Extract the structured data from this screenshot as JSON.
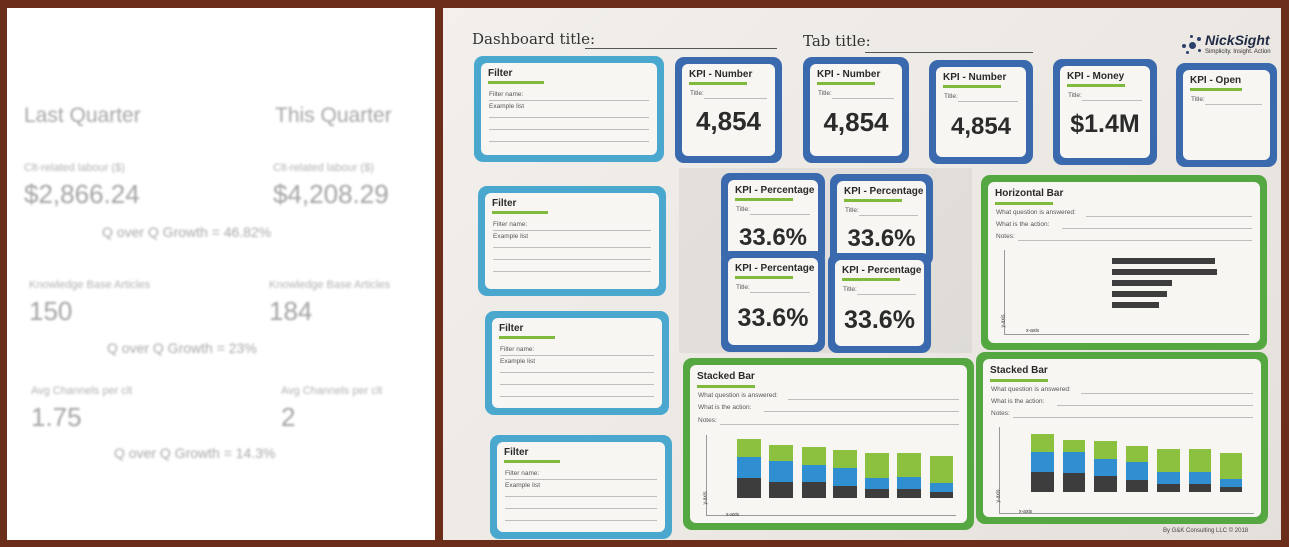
{
  "summary": {
    "last_quarter": "Last Quarter",
    "this_quarter": "This Quarter",
    "metrics": [
      {
        "label_last": "Clt-related labour ($)",
        "value_last": "$2,866.24",
        "label_this": "Clt-related labour ($)",
        "value_this": "$4,208.29",
        "growth": "Q over Q Growth = 46.82%"
      },
      {
        "label_last": "Knowledge Base Articles",
        "value_last": "150",
        "label_this": "Knowledge Base Articles",
        "value_this": "184",
        "growth": "Q over Q Growth = 23%"
      },
      {
        "label_last": "Avg Channels per clt",
        "value_last": "1.75",
        "label_this": "Avg Channels per clt",
        "value_this": "2",
        "growth": "Q over Q Growth = 14.3%"
      }
    ]
  },
  "board": {
    "dashboard_title_label": "Dashboard title:",
    "tab_title_label": "Tab title:",
    "logo": {
      "name": "NickSight",
      "tagline": "Simplicity. Insight. Action"
    },
    "filter": {
      "title": "Filter",
      "filter_name": "Filter name:",
      "example_list": "Example list"
    },
    "kpi_number": {
      "title": "KPI - Number",
      "label": "Title:",
      "value": "4,854"
    },
    "kpi_money": {
      "title": "KPI - Money",
      "label": "Title:",
      "value": "$1.4M"
    },
    "kpi_open": {
      "title": "KPI - Open",
      "label": "Title:"
    },
    "kpi_percentage": {
      "title": "KPI - Percentage",
      "label": "Title:",
      "value": "33.6%"
    },
    "chart_card": {
      "question": "What question is answered:",
      "action": "What is the action:",
      "notes": "Notes:",
      "x_axis": "x-axis",
      "y_axis": "y-axis"
    },
    "horizontal_bar": {
      "title": "Horizontal Bar"
    },
    "stacked_bar": {
      "title": "Stacked Bar"
    },
    "footer": "By G&K Consulting LLC © 2018"
  },
  "colors": {
    "kpi_frame": "#3a6aad",
    "filter_frame": "#4aa8cf",
    "chart_frame": "#55a742",
    "title_underline": "#7fba3c",
    "bar_dark": "#3d3d3d",
    "bar_blue": "#2f8fd0",
    "bar_green": "#8cc13f"
  }
}
